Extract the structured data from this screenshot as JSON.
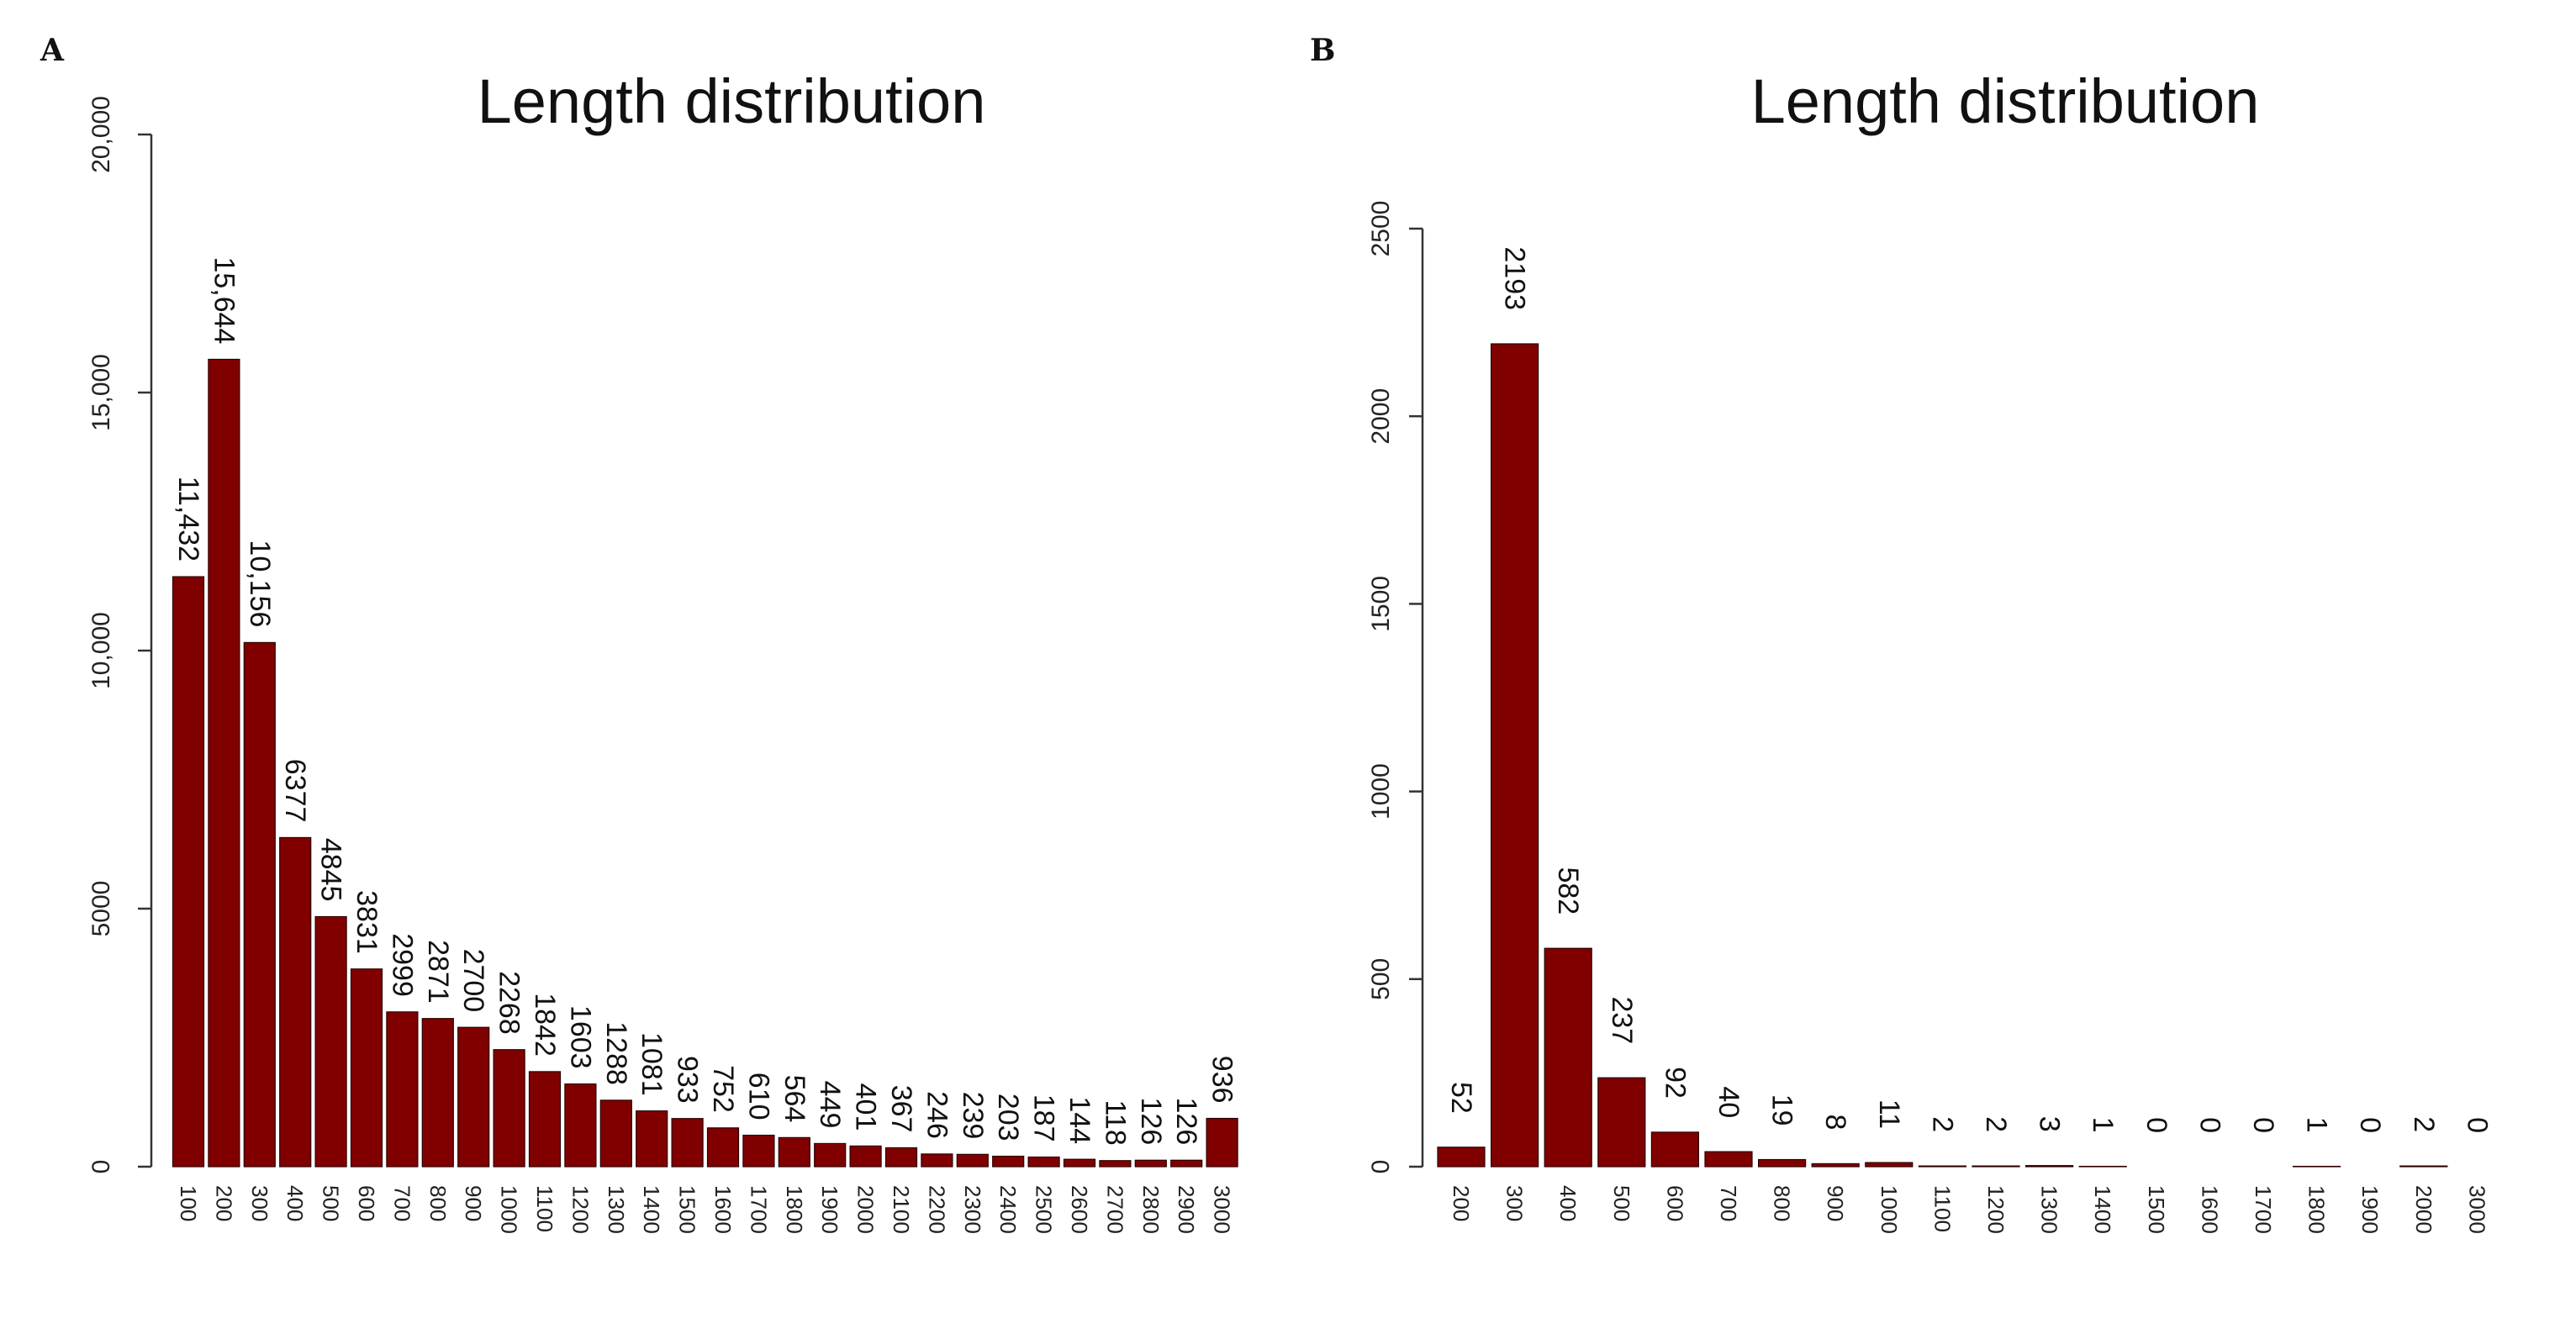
{
  "chart_data": [
    {
      "type": "bar",
      "panel_label": "A",
      "title": "Length distribution",
      "xlabel": "",
      "ylabel": "",
      "ylim": [
        0,
        20000
      ],
      "yticks": [
        0,
        5000,
        10000,
        15000,
        20000
      ],
      "ytick_labels": [
        "0",
        "5000",
        "10,000",
        "15,000",
        "20,000"
      ],
      "bar_color": "#800000",
      "categories": [
        "100",
        "200",
        "300",
        "400",
        "500",
        "600",
        "700",
        "800",
        "900",
        "1000",
        "1100",
        "1200",
        "1300",
        "1400",
        "1500",
        "1600",
        "1700",
        "1800",
        "1900",
        "2000",
        "2100",
        "2200",
        "2300",
        "2400",
        "2500",
        "2600",
        "2700",
        "2800",
        "2900",
        "3000"
      ],
      "values": [
        11432,
        15644,
        10156,
        6377,
        4845,
        3831,
        2999,
        2871,
        2700,
        2268,
        1842,
        1603,
        1288,
        1081,
        933,
        752,
        610,
        564,
        449,
        401,
        367,
        246,
        239,
        203,
        187,
        144,
        118,
        126,
        126,
        936
      ],
      "value_labels": [
        "11,432",
        "15,644",
        "10,156",
        "6377",
        "4845",
        "3831",
        "2999",
        "2871",
        "2700",
        "2268",
        "1842",
        "1603",
        "1288",
        "1081",
        "933",
        "752",
        "610",
        "564",
        "449",
        "401",
        "367",
        "246",
        "239",
        "203",
        "187",
        "144",
        "118",
        "126",
        "126",
        "936"
      ]
    },
    {
      "type": "bar",
      "panel_label": "B",
      "title": "Length distribution",
      "xlabel": "",
      "ylabel": "",
      "ylim": [
        0,
        2500
      ],
      "yticks": [
        0,
        500,
        1000,
        1500,
        2000,
        2500
      ],
      "ytick_labels": [
        "0",
        "500",
        "1000",
        "1500",
        "2000",
        "2500"
      ],
      "bar_color": "#800000",
      "categories": [
        "200",
        "300",
        "400",
        "500",
        "600",
        "700",
        "800",
        "900",
        "1000",
        "1100",
        "1200",
        "1300",
        "1400",
        "1500",
        "1600",
        "1700",
        "1800",
        "1900",
        "2000",
        "3000"
      ],
      "values": [
        52,
        2193,
        582,
        237,
        92,
        40,
        19,
        8,
        11,
        2,
        2,
        3,
        1,
        0,
        0,
        0,
        1,
        0,
        2,
        0
      ],
      "value_labels": [
        "52",
        "2193",
        "582",
        "237",
        "92",
        "40",
        "19",
        "8",
        "11",
        "2",
        "2",
        "3",
        "1",
        "0",
        "0",
        "0",
        "1",
        "0",
        "2",
        "0"
      ]
    }
  ]
}
